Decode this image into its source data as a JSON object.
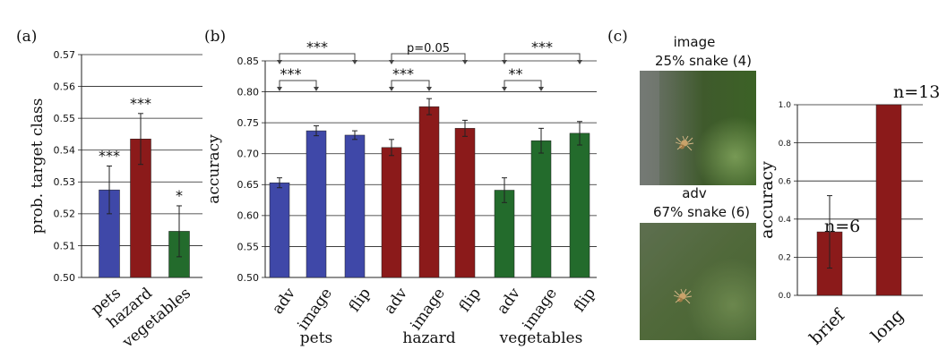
{
  "panels": {
    "a": {
      "letter": "(a)"
    },
    "b": {
      "letter": "(b)"
    },
    "c": {
      "letter": "(c)",
      "image_title": "image",
      "image_subtitle": "25% snake (4)",
      "adv_title": "adv",
      "adv_subtitle": "67% snake (6)"
    }
  },
  "colors": {
    "pets": "#3f48a8",
    "hazard": "#8b1a1a",
    "vegetables": "#236b2c"
  },
  "chart_data": [
    {
      "id": "a",
      "type": "bar",
      "ylabel": "prob. target class",
      "ylim": [
        0.5,
        0.57
      ],
      "yticks": [
        0.5,
        0.51,
        0.52,
        0.53,
        0.54,
        0.55,
        0.56,
        0.57
      ],
      "ytick_labels": [
        "0.50",
        "0.51",
        "0.52",
        "0.53",
        "0.54",
        "0.55",
        "0.56",
        "0.57"
      ],
      "grid": true,
      "categories": [
        "pets",
        "hazard",
        "vegetables"
      ],
      "values": [
        0.5275,
        0.5435,
        0.5145
      ],
      "errors": [
        0.0075,
        0.008,
        0.008
      ],
      "significance": [
        "***",
        "***",
        "*"
      ]
    },
    {
      "id": "b",
      "type": "bar",
      "ylabel": "accuracy",
      "ylim": [
        0.5,
        0.85
      ],
      "yticks": [
        0.5,
        0.55,
        0.6,
        0.65,
        0.7,
        0.75,
        0.8,
        0.85
      ],
      "ytick_labels": [
        "0.50",
        "0.55",
        "0.60",
        "0.65",
        "0.70",
        "0.75",
        "0.80",
        "0.85"
      ],
      "grid": true,
      "groups": [
        {
          "name": "pets",
          "categories": [
            "adv",
            "image",
            "flip"
          ],
          "values": [
            0.653,
            0.737,
            0.73
          ],
          "errors": [
            0.008,
            0.008,
            0.007
          ],
          "comparisons": [
            {
              "from": 0,
              "to": 2,
              "label": "***"
            },
            {
              "from": 0,
              "to": 1,
              "label": "***"
            }
          ]
        },
        {
          "name": "hazard",
          "categories": [
            "adv",
            "image",
            "flip"
          ],
          "values": [
            0.71,
            0.776,
            0.741
          ],
          "errors": [
            0.013,
            0.013,
            0.013
          ],
          "comparisons": [
            {
              "from": 0,
              "to": 2,
              "label": "p=0.05"
            },
            {
              "from": 0,
              "to": 1,
              "label": "***"
            }
          ]
        },
        {
          "name": "vegetables",
          "categories": [
            "adv",
            "image",
            "flip"
          ],
          "values": [
            0.641,
            0.721,
            0.733
          ],
          "errors": [
            0.02,
            0.02,
            0.019
          ],
          "comparisons": [
            {
              "from": 0,
              "to": 2,
              "label": "***"
            },
            {
              "from": 0,
              "to": 1,
              "label": "**"
            }
          ]
        }
      ]
    },
    {
      "id": "c",
      "type": "bar",
      "ylabel": "accuracy",
      "ylim": [
        0.0,
        1.0
      ],
      "yticks": [
        0.0,
        0.2,
        0.4,
        0.6,
        0.8,
        1.0
      ],
      "ytick_labels": [
        "0.0",
        "0.2",
        "0.4",
        "0.6",
        "0.8",
        "1.0"
      ],
      "grid": true,
      "categories": [
        "brief",
        "long"
      ],
      "values": [
        0.333,
        1.0
      ],
      "errors": [
        0.19,
        0.0
      ],
      "annotations": [
        "n=6",
        "n=13"
      ]
    }
  ]
}
